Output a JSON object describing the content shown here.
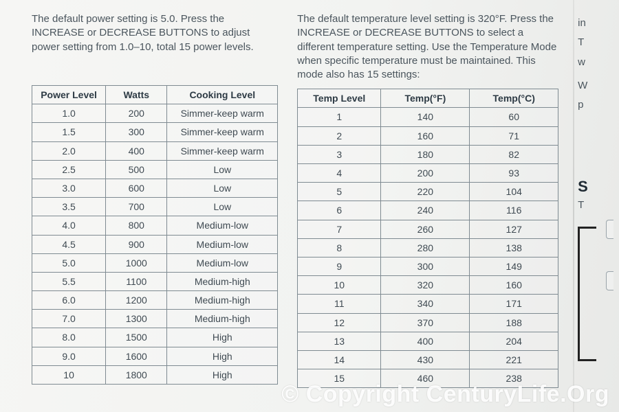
{
  "left": {
    "intro": "The default power setting is 5.0. Press the INCREASE or DECREASE BUTTONS to adjust power setting from 1.0–10, total 15 power levels.",
    "table": {
      "headers": [
        "Power Level",
        "Watts",
        "Cooking Level"
      ],
      "rows": [
        [
          "1.0",
          "200",
          "Simmer-keep warm"
        ],
        [
          "1.5",
          "300",
          "Simmer-keep warm"
        ],
        [
          "2.0",
          "400",
          "Simmer-keep warm"
        ],
        [
          "2.5",
          "500",
          "Low"
        ],
        [
          "3.0",
          "600",
          "Low"
        ],
        [
          "3.5",
          "700",
          "Low"
        ],
        [
          "4.0",
          "800",
          "Medium-low"
        ],
        [
          "4.5",
          "900",
          "Medium-low"
        ],
        [
          "5.0",
          "1000",
          "Medium-low"
        ],
        [
          "5.5",
          "1100",
          "Medium-high"
        ],
        [
          "6.0",
          "1200",
          "Medium-high"
        ],
        [
          "7.0",
          "1300",
          "Medium-high"
        ],
        [
          "8.0",
          "1500",
          "High"
        ],
        [
          "9.0",
          "1600",
          "High"
        ],
        [
          "10",
          "1800",
          "High"
        ]
      ]
    }
  },
  "right": {
    "intro": "The default temperature level setting is 320°F. Press the INCREASE or DECREASE BUTTONS to select a different temperature setting. Use the Temperature Mode when specific temperature must be maintained. This mode also has 15 settings:",
    "table": {
      "headers": [
        "Temp Level",
        "Temp(°F)",
        "Temp(°C)"
      ],
      "rows": [
        [
          "1",
          "140",
          "60"
        ],
        [
          "2",
          "160",
          "71"
        ],
        [
          "3",
          "180",
          "82"
        ],
        [
          "4",
          "200",
          "93"
        ],
        [
          "5",
          "220",
          "104"
        ],
        [
          "6",
          "240",
          "116"
        ],
        [
          "7",
          "260",
          "127"
        ],
        [
          "8",
          "280",
          "138"
        ],
        [
          "9",
          "300",
          "149"
        ],
        [
          "10",
          "320",
          "160"
        ],
        [
          "11",
          "340",
          "171"
        ],
        [
          "12",
          "370",
          "188"
        ],
        [
          "13",
          "400",
          "204"
        ],
        [
          "14",
          "430",
          "221"
        ],
        [
          "15",
          "460",
          "238"
        ]
      ]
    }
  },
  "edge": {
    "frag1": "in",
    "frag2": "T",
    "frag3": "w",
    "frag4": "W",
    "frag5": "p",
    "bold": "S",
    "frag6": "T"
  },
  "watermark": "© Copyright CenturyLife.Org",
  "style": {
    "text_color": "#3f4a52",
    "border_color": "#7e8a91",
    "header_fontsize": 14,
    "cell_fontsize": 14,
    "intro_fontsize": 15,
    "watermark_color": "rgba(255,255,255,0.92)",
    "watermark_fontsize": 34,
    "background": "linear-gradient(100deg,#f6f6f4,#f2f3f1,#e8e9e7)"
  }
}
